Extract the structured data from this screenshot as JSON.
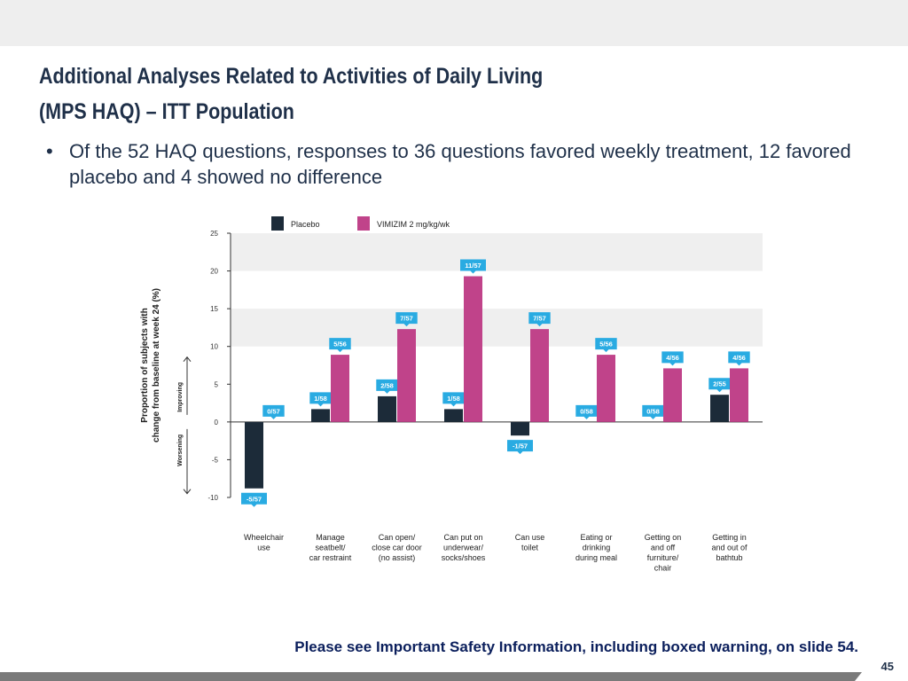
{
  "slide": {
    "title_line1": "Additional Analyses Related to Activities of Daily Living",
    "title_line2": "(MPS HAQ) – ITT Population",
    "bullet": "Of the 52 HAQ questions, responses to 36 questions favored weekly treatment, 12 favored placebo and 4 showed no difference",
    "bullet_marker": "•",
    "footer_note": "Please see Important Safety Information, including boxed warning, on slide 54.",
    "page_number": "45"
  },
  "colors": {
    "title": "#1f3049",
    "placebo": "#1c2b39",
    "vimizim": "#c0438a",
    "label_box": "#29abe2",
    "band": "#efefef",
    "footer_note": "#0b1f5c"
  },
  "chart_data": {
    "type": "bar",
    "ylabel_line1": "Proportion of subjects with",
    "ylabel_line2": "change from baseline at week 24 (%)",
    "improving_label": "Improving",
    "worsening_label": "Worsening",
    "ylim": [
      -10,
      25
    ],
    "yticks": [
      -10,
      -5,
      0,
      5,
      10,
      15,
      20,
      25
    ],
    "legend_position": "top",
    "categories": [
      [
        "Wheelchair",
        "use"
      ],
      [
        "Manage",
        "seatbelt/",
        "car restraint"
      ],
      [
        "Can open/",
        "close car door",
        "(no assist)"
      ],
      [
        "Can put on",
        "underwear/",
        "socks/shoes"
      ],
      [
        "Can use",
        "toilet"
      ],
      [
        "Eating or",
        "drinking",
        "during meal"
      ],
      [
        "Getting on",
        "and off",
        "furniture/",
        "chair"
      ],
      [
        "Getting in",
        "and out of",
        "bathtub"
      ]
    ],
    "series": [
      {
        "name": "Placebo",
        "values": [
          -8.8,
          1.7,
          3.4,
          1.7,
          -1.8,
          0,
          0,
          3.6
        ],
        "labels": [
          "-5/57",
          "1/58",
          "2/58",
          "1/58",
          "-1/57",
          "0/58",
          "0/58",
          "2/55"
        ]
      },
      {
        "name": "VIMIZIM 2 mg/kg/wk",
        "values": [
          0,
          8.9,
          12.3,
          19.3,
          12.3,
          8.9,
          7.1,
          7.1
        ],
        "labels": [
          "0/57",
          "5/56",
          "7/57",
          "11/57",
          "7/57",
          "5/56",
          "4/56",
          "4/56"
        ]
      }
    ]
  }
}
